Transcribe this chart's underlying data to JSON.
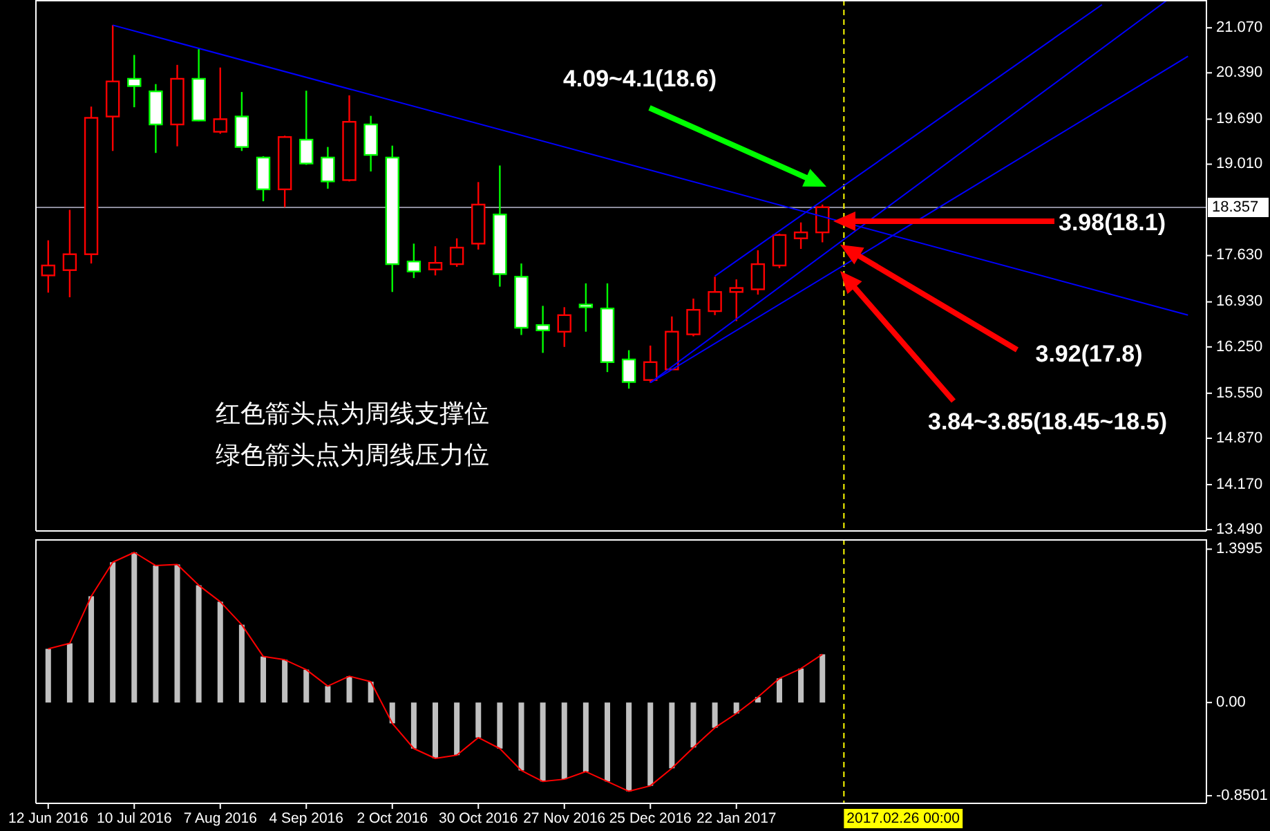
{
  "chart_data": [
    {
      "type": "candlestick",
      "xlim": [
        "2016-06-08",
        "2017-06-24"
      ],
      "tick_labels": "y",
      "x": [
        "2016-06-12",
        "2016-06-19",
        "2016-06-26",
        "2016-07-03",
        "2016-07-10",
        "2016-07-17",
        "2016-07-24",
        "2016-07-31",
        "2016-08-07",
        "2016-08-14",
        "2016-08-21",
        "2016-08-28",
        "2016-09-04",
        "2016-09-11",
        "2016-09-18",
        "2016-09-25",
        "2016-10-02",
        "2016-10-09",
        "2016-10-16",
        "2016-10-23",
        "2016-10-30",
        "2016-11-06",
        "2016-11-13",
        "2016-11-20",
        "2016-11-27",
        "2016-12-04",
        "2016-12-11",
        "2016-12-18",
        "2016-12-25",
        "2017-01-01",
        "2017-01-08",
        "2017-01-15",
        "2017-01-22",
        "2017-01-29",
        "2017-02-05",
        "2017-02-12",
        "2017-02-19"
      ],
      "ohlc": [
        [
          17.33,
          17.86,
          17.07,
          17.48
        ],
        [
          17.41,
          18.32,
          17.0,
          17.65
        ],
        [
          17.65,
          19.88,
          17.51,
          19.71
        ],
        [
          19.73,
          21.11,
          19.21,
          20.26
        ],
        [
          20.3,
          20.66,
          19.87,
          20.19
        ],
        [
          20.11,
          20.22,
          19.18,
          19.61
        ],
        [
          19.61,
          20.51,
          19.28,
          20.3
        ],
        [
          20.3,
          20.75,
          19.66,
          19.67
        ],
        [
          19.5,
          20.47,
          19.47,
          19.69
        ],
        [
          19.73,
          20.1,
          19.21,
          19.27
        ],
        [
          19.11,
          19.13,
          18.45,
          18.63
        ],
        [
          18.63,
          19.44,
          18.36,
          19.42
        ],
        [
          19.38,
          20.12,
          19.0,
          19.02
        ],
        [
          19.11,
          19.27,
          18.64,
          18.75
        ],
        [
          18.77,
          20.05,
          18.75,
          19.65
        ],
        [
          19.61,
          19.74,
          18.9,
          19.15
        ],
        [
          19.11,
          19.29,
          17.08,
          17.5
        ],
        [
          17.54,
          17.81,
          17.29,
          17.39
        ],
        [
          17.42,
          17.77,
          17.33,
          17.52
        ],
        [
          17.5,
          17.89,
          17.46,
          17.75
        ],
        [
          17.81,
          18.74,
          17.72,
          18.4
        ],
        [
          18.25,
          18.99,
          17.16,
          17.35
        ],
        [
          17.31,
          17.51,
          16.43,
          16.54
        ],
        [
          16.58,
          16.87,
          16.16,
          16.5
        ],
        [
          16.48,
          16.85,
          16.25,
          16.73
        ],
        [
          16.89,
          17.21,
          16.48,
          16.85
        ],
        [
          16.83,
          17.21,
          15.87,
          16.02
        ],
        [
          16.06,
          16.2,
          15.62,
          15.72
        ],
        [
          15.75,
          16.27,
          15.71,
          16.02
        ],
        [
          15.91,
          16.71,
          15.91,
          16.48
        ],
        [
          16.44,
          16.98,
          16.41,
          16.81
        ],
        [
          16.79,
          17.31,
          16.73,
          17.08
        ],
        [
          17.08,
          17.27,
          16.64,
          17.14
        ],
        [
          17.12,
          17.71,
          17.04,
          17.5
        ],
        [
          17.48,
          17.96,
          17.44,
          17.94
        ],
        [
          17.89,
          18.13,
          17.73,
          17.98
        ],
        [
          17.98,
          18.4,
          17.83,
          18.36
        ]
      ],
      "colors": [
        "#ff0000",
        "#ff0000",
        "#ff0000",
        "#ff0000",
        "#00ff00",
        "#00ff00",
        "#ff0000",
        "#00ff00",
        "#ff0000",
        "#00ff00",
        "#00ff00",
        "#ff0000",
        "#00ff00",
        "#00ff00",
        "#ff0000",
        "#00ff00",
        "#00ff00",
        "#00ff00",
        "#ff0000",
        "#ff0000",
        "#ff0000",
        "#00ff00",
        "#00ff00",
        "#00ff00",
        "#ff0000",
        "#00ff00",
        "#00ff00",
        "#00ff00",
        "#ff0000",
        "#ff0000",
        "#ff0000",
        "#ff0000",
        "#ff0000",
        "#ff0000",
        "#ff0000",
        "#ff0000",
        "#ff0000"
      ],
      "series": [
        {
          "type": "line",
          "color": "#0000ff",
          "x": [
            "2016-07-03",
            "2017-06-18"
          ],
          "values": [
            21.11,
            16.73
          ]
        },
        {
          "type": "line",
          "color": "#0000ff",
          "x": [
            "2017-01-15",
            "2017-05-21"
          ],
          "values": [
            17.32,
            21.42
          ]
        },
        {
          "type": "line",
          "color": "#0000ff",
          "x": [
            "2016-12-25",
            "2017-06-11"
          ],
          "values": [
            15.71,
            21.48
          ]
        },
        {
          "type": "line",
          "color": "#0000ff",
          "x": [
            "2016-12-25",
            "2017-06-18"
          ],
          "values": [
            15.71,
            20.64
          ]
        }
      ],
      "ylim": [
        13.47,
        21.49
      ],
      "yticks": [
        {
          "value": 21.07,
          "label": "21.070"
        },
        {
          "value": 20.39,
          "label": "20.390"
        },
        {
          "value": 19.69,
          "label": "19.690"
        },
        {
          "value": 19.01,
          "label": "19.010"
        },
        {
          "value": 17.63,
          "label": "17.630"
        },
        {
          "value": 16.93,
          "label": "16.930"
        },
        {
          "value": 16.25,
          "label": "16.250"
        },
        {
          "value": 15.55,
          "label": "15.550"
        },
        {
          "value": 14.87,
          "label": "14.870"
        },
        {
          "value": 14.17,
          "label": "14.170"
        },
        {
          "value": 13.49,
          "label": "13.490"
        }
      ],
      "ref_lines": [
        {
          "axis": "y",
          "value": 18.357,
          "label": "18.357",
          "color": "#8c8c9c"
        },
        {
          "axis": "x",
          "value": "2017-02-26",
          "color": "#ffff00",
          "line_style": "dashed"
        }
      ],
      "annotations": [
        "4.09~4.1(18.6)",
        "3.98(18.1)",
        "3.92(17.8)",
        "3.84~3.85(18.45~18.5)",
        "红色箭头点为周线支撑位",
        "绿色箭头点为周线压力位"
      ]
    },
    {
      "type": "bar",
      "xlim": [
        "2016-06-08",
        "2017-06-24"
      ],
      "x": [
        "2016-06-12",
        "2016-06-19",
        "2016-06-26",
        "2016-07-03",
        "2016-07-10",
        "2016-07-17",
        "2016-07-24",
        "2016-07-31",
        "2016-08-07",
        "2016-08-14",
        "2016-08-21",
        "2016-08-28",
        "2016-09-04",
        "2016-09-11",
        "2016-09-18",
        "2016-09-25",
        "2016-10-02",
        "2016-10-09",
        "2016-10-16",
        "2016-10-23",
        "2016-10-30",
        "2016-11-06",
        "2016-11-13",
        "2016-11-20",
        "2016-11-27",
        "2016-12-04",
        "2016-12-11",
        "2016-12-18",
        "2016-12-25",
        "2017-01-01",
        "2017-01-08",
        "2017-01-15",
        "2017-01-22",
        "2017-01-29",
        "2017-02-05",
        "2017-02-12",
        "2017-02-19"
      ],
      "series": [
        {
          "type": "bar",
          "color": "#c0c0c0",
          "values": [
            0.49,
            0.54,
            0.97,
            1.28,
            1.37,
            1.25,
            1.26,
            1.07,
            0.92,
            0.71,
            0.42,
            0.39,
            0.3,
            0.15,
            0.24,
            0.19,
            -0.19,
            -0.42,
            -0.51,
            -0.48,
            -0.32,
            -0.42,
            -0.62,
            -0.72,
            -0.7,
            -0.63,
            -0.72,
            -0.81,
            -0.76,
            -0.6,
            -0.41,
            -0.23,
            -0.1,
            0.05,
            0.22,
            0.31,
            0.44
          ]
        },
        {
          "type": "line",
          "color": "#ff0000",
          "values": [
            0.49,
            0.54,
            0.97,
            1.28,
            1.37,
            1.25,
            1.26,
            1.07,
            0.92,
            0.71,
            0.42,
            0.39,
            0.3,
            0.15,
            0.24,
            0.19,
            -0.19,
            -0.42,
            -0.51,
            -0.48,
            -0.32,
            -0.42,
            -0.62,
            -0.72,
            -0.7,
            -0.63,
            -0.72,
            -0.81,
            -0.76,
            -0.6,
            -0.41,
            -0.23,
            -0.1,
            0.05,
            0.22,
            0.31,
            0.44
          ]
        }
      ],
      "ylim": [
        -0.92,
        1.49
      ],
      "yticks": [
        1.3995,
        {
          "value": 0,
          "label": "0.00"
        },
        -0.8501
      ],
      "xticks": [
        {
          "value": "2016-06-12",
          "label": "12 Jun 2016"
        },
        {
          "value": "2016-07-10",
          "label": "10 Jul 2016"
        },
        {
          "value": "2016-08-07",
          "label": "7 Aug 2016"
        },
        {
          "value": "2016-09-04",
          "label": "4 Sep 2016"
        },
        {
          "value": "2016-10-02",
          "label": "2 Oct 2016"
        },
        {
          "value": "2016-10-30",
          "label": "30 Oct 2016"
        },
        {
          "value": "2016-11-27",
          "label": "27 Nov 2016"
        },
        {
          "value": "2016-12-25",
          "label": "25 Dec 2016"
        },
        {
          "value": "2017-01-22",
          "label": "22 Jan 2017"
        }
      ],
      "ref_lines": [
        {
          "axis": "x",
          "value": "2017-02-26",
          "label": "2017.02.26 00:00",
          "color": "#ffff00",
          "line_style": "dashed"
        }
      ]
    }
  ]
}
